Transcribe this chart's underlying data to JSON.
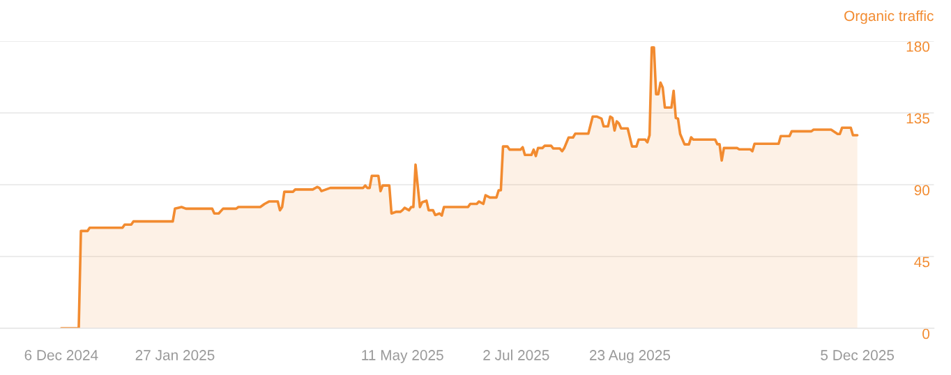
{
  "chart_data": {
    "type": "area",
    "ylabel": "Organic traffic",
    "x": [
      "2024-12-06",
      "2024-12-14",
      "2024-12-15",
      "2024-12-18",
      "2024-12-19",
      "2025-01-03",
      "2025-01-04",
      "2025-01-07",
      "2025-01-08",
      "2025-01-26",
      "2025-01-27",
      "2025-01-30",
      "2025-02-01",
      "2025-02-13",
      "2025-02-14",
      "2025-02-16",
      "2025-02-18",
      "2025-02-24",
      "2025-02-25",
      "2025-03-07",
      "2025-03-09",
      "2025-03-11",
      "2025-03-15",
      "2025-03-16",
      "2025-03-17",
      "2025-03-18",
      "2025-03-22",
      "2025-03-23",
      "2025-03-31",
      "2025-04-02",
      "2025-04-03",
      "2025-04-04",
      "2025-04-06",
      "2025-04-08",
      "2025-04-23",
      "2025-04-24",
      "2025-04-25",
      "2025-04-26",
      "2025-04-27",
      "2025-04-30",
      "2025-05-01",
      "2025-05-02",
      "2025-05-05",
      "2025-05-06",
      "2025-05-08",
      "2025-05-10",
      "2025-05-11",
      "2025-05-12",
      "2025-05-14",
      "2025-05-15",
      "2025-05-16",
      "2025-05-17",
      "2025-05-19",
      "2025-05-20",
      "2025-05-22",
      "2025-05-23",
      "2025-05-25",
      "2025-05-26",
      "2025-05-28",
      "2025-05-29",
      "2025-05-30",
      "2025-06-10",
      "2025-06-11",
      "2025-06-14",
      "2025-06-15",
      "2025-06-17",
      "2025-06-18",
      "2025-06-20",
      "2025-06-23",
      "2025-06-24",
      "2025-06-25",
      "2025-06-26",
      "2025-06-28",
      "2025-06-29",
      "2025-07-04",
      "2025-07-05",
      "2025-07-06",
      "2025-07-09",
      "2025-07-10",
      "2025-07-11",
      "2025-07-12",
      "2025-07-14",
      "2025-07-15",
      "2025-07-18",
      "2025-07-19",
      "2025-07-22",
      "2025-07-23",
      "2025-07-24",
      "2025-07-26",
      "2025-07-28",
      "2025-07-29",
      "2025-08-04",
      "2025-08-06",
      "2025-08-08",
      "2025-08-10",
      "2025-08-11",
      "2025-08-13",
      "2025-08-14",
      "2025-08-15",
      "2025-08-16",
      "2025-08-17",
      "2025-08-18",
      "2025-08-19",
      "2025-08-22",
      "2025-08-24",
      "2025-08-26",
      "2025-08-27",
      "2025-08-30",
      "2025-08-31",
      "2025-09-01",
      "2025-09-02",
      "2025-09-03",
      "2025-09-04",
      "2025-09-05",
      "2025-09-06",
      "2025-09-07",
      "2025-09-08",
      "2025-09-11",
      "2025-09-12",
      "2025-09-13",
      "2025-09-14",
      "2025-09-15",
      "2025-09-17",
      "2025-09-19",
      "2025-09-20",
      "2025-09-21",
      "2025-10-01",
      "2025-10-02",
      "2025-10-03",
      "2025-10-04",
      "2025-10-05",
      "2025-10-11",
      "2025-10-12",
      "2025-10-17",
      "2025-10-18",
      "2025-10-19",
      "2025-10-30",
      "2025-10-31",
      "2025-11-04",
      "2025-11-05",
      "2025-11-14",
      "2025-11-15",
      "2025-11-23",
      "2025-11-26",
      "2025-11-27",
      "2025-11-28",
      "2025-12-02",
      "2025-12-03",
      "2025-12-05"
    ],
    "series": [
      {
        "color": "#f28b30",
        "values": [
          0,
          0,
          61,
          61,
          63,
          63,
          65,
          65,
          67,
          67,
          75,
          76,
          75,
          75,
          72,
          72,
          75,
          75,
          76,
          76,
          78,
          79.5,
          79.5,
          74,
          76,
          85.6,
          85.6,
          87,
          87,
          88.6,
          88,
          86,
          87,
          88,
          88,
          89.5,
          88,
          88,
          95.6,
          95.6,
          86,
          89.5,
          89.5,
          72,
          73,
          73,
          74,
          75.5,
          74,
          76,
          76,
          102.6,
          76,
          79,
          80,
          74,
          74,
          71,
          72,
          70.7,
          76,
          76,
          78,
          78,
          79.5,
          78,
          83.4,
          82,
          82,
          86.5,
          86.5,
          114,
          114,
          112,
          112,
          113.5,
          108.7,
          108.7,
          112,
          108,
          113,
          113,
          114.4,
          114.4,
          112.7,
          112.7,
          111,
          113,
          119.6,
          119.6,
          122,
          122,
          132.7,
          132.7,
          131.5,
          126.6,
          126.6,
          132.7,
          131.8,
          124,
          129.7,
          128.4,
          125.3,
          125.3,
          114,
          114,
          118.3,
          118.3,
          116.6,
          121,
          176,
          176,
          146.7,
          146.7,
          154,
          151,
          138.4,
          138.4,
          148.9,
          131.8,
          131.4,
          121.8,
          115.3,
          115.3,
          119.7,
          118.3,
          118.3,
          115.4,
          115.4,
          105.2,
          113,
          113,
          112.2,
          112.2,
          111,
          115.7,
          115.7,
          120.5,
          120.5,
          123.5,
          123.5,
          124.5,
          124.5,
          121.8,
          121.8,
          125.7,
          125.7,
          121,
          121
        ]
      }
    ],
    "xlim": [
      "2024-11-08",
      "2026-01-09"
    ],
    "xticks": [
      {
        "value": "2024-12-06",
        "label": "6 Dec 2024"
      },
      {
        "value": "2025-01-27",
        "label": "27 Jan 2025"
      },
      {
        "value": "2025-05-11",
        "label": "11 May 2025"
      },
      {
        "value": "2025-07-02",
        "label": "2 Jul 2025"
      },
      {
        "value": "2025-08-23",
        "label": "23 Aug 2025"
      },
      {
        "value": "2025-12-05",
        "label": "5 Dec 2025"
      }
    ],
    "ylim": [
      0,
      180
    ],
    "yticks": [
      0,
      45,
      90,
      135,
      180
    ],
    "grid": "y"
  }
}
